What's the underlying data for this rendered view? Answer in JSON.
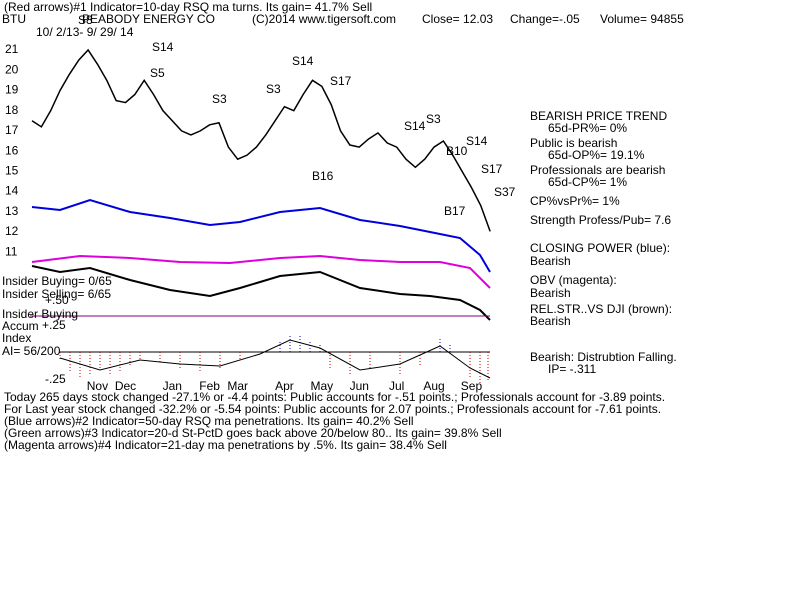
{
  "chart_data": {
    "type": "line",
    "title": "PEABODY ENERGY CO",
    "ticker": "BTU",
    "header": "(Red arrows)#1 Indicator=10-day RSQ ma turns.  Its gain= 41.7% Sell",
    "copyright": "(C)2014 www.tigersoft.com",
    "close": "Close=  12.03",
    "change": "Change=-.05",
    "volume": "Volume= 94855",
    "date_range": "10/ 2/13- 9/ 29/ 14",
    "categories": [
      null,
      null,
      null,
      null,
      null,
      null,
      null,
      "Nov",
      null,
      null,
      "Dec",
      null,
      null,
      null,
      null,
      "Jan",
      null,
      null,
      null,
      "Feb",
      null,
      null,
      "Mar",
      null,
      null,
      null,
      null,
      "Apr",
      null,
      null,
      null,
      "May",
      null,
      null,
      null,
      "Jun",
      null,
      null,
      null,
      "Jul",
      null,
      null,
      null,
      "Aug",
      null,
      null,
      null,
      "Sep",
      null,
      null
    ],
    "series": [
      {
        "name": "Price",
        "color": "#000000",
        "values": [
          17.5,
          17.2,
          18.0,
          19.0,
          19.8,
          20.5,
          21.0,
          20.3,
          19.5,
          18.5,
          18.4,
          18.8,
          19.5,
          18.8,
          18.0,
          17.5,
          17.0,
          16.8,
          17.0,
          17.3,
          17.4,
          16.2,
          15.6,
          15.8,
          16.2,
          16.8,
          17.5,
          18.2,
          18.0,
          18.8,
          19.5,
          19.2,
          18.3,
          17.0,
          16.3,
          16.2,
          16.6,
          16.9,
          16.4,
          16.2,
          15.6,
          15.2,
          15.6,
          16.2,
          16.5,
          15.8,
          15.0,
          14.2,
          13.3,
          12.03
        ]
      }
    ],
    "ylim": [
      11,
      22
    ],
    "yticks": [
      11,
      12,
      13,
      14,
      15,
      16,
      17,
      18,
      19,
      20,
      21
    ],
    "annotations": [
      "S8",
      "S14",
      "S5",
      "S3",
      "S3",
      "S14",
      "S17",
      "B16",
      "S14",
      "S3",
      "S14",
      "B10",
      "S17",
      "S37",
      "B17"
    ],
    "right_panel": [
      "BEARISH PRICE TREND",
      "65d-PR%= 0%",
      "Public is bearish",
      "65d-OP%= 19.1%",
      "Professionals are bearish",
      "65d-CP%= 1%",
      "CP%vsPr%=  1%",
      "Strength Profess/Pub= 7.6",
      "CLOSING POWER (blue):",
      "Bearish",
      "OBV (magenta):",
      "Bearish",
      "REL.STR..VS DJI (brown):",
      "Bearish",
      "Bearish: Distrubtion Falling.",
      "IP= -.311"
    ],
    "left_panel": [
      "Insider Buying= 0/65",
      "Insider Selling= 6/65",
      "+.50",
      "Insider Buying",
      "Accum",
      "+.25",
      "Index",
      "AI= 56/200",
      "-.25"
    ],
    "footer": [
      "Today 265 days stock changed -27.1% or -4.4 points:  Public accounts for -.51 points.;  Professionals account for -3.89 points.",
      "For Last year stock changed -32.2% or -5.54 points:  Public accounts for  2.07 points.;  Professionals account for -7.61 points.",
      "(Blue arrows)#2 Indicator=50-day RSQ ma penetrations.  Its gain= 40.2% Sell",
      "(Green arrows)#3 Indicator=20-d St-PctD goes back above 20/below 80..  Its gain= 39.8% Sell",
      "(Magenta arrows)#4 Indicator=21-day ma penetrations by .5%.  Its gain= 38.4% Sell"
    ]
  }
}
